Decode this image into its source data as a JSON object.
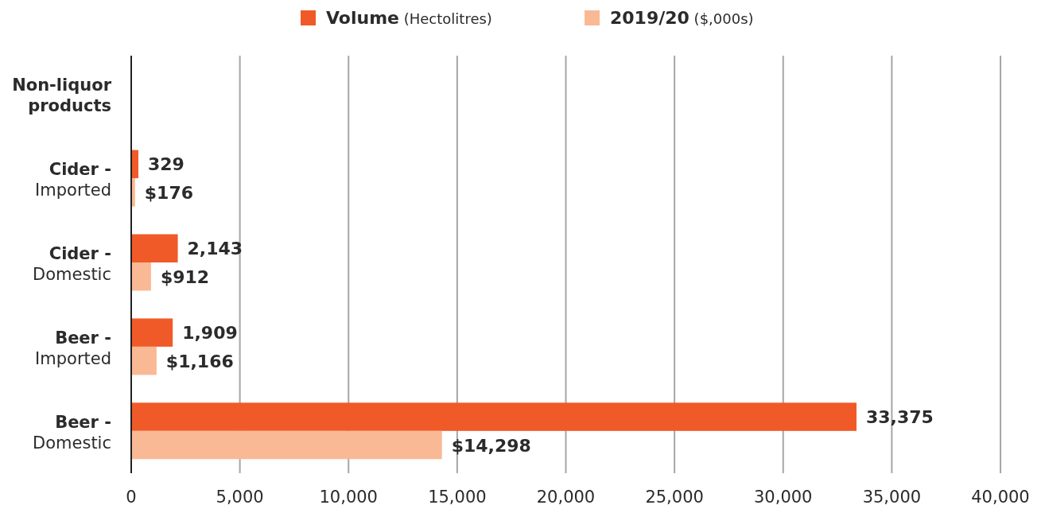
{
  "chart_data": {
    "type": "bar",
    "orientation": "horizontal",
    "categories": [
      "Non-liquor products",
      "Cider - Imported",
      "Cider - Domestic",
      "Beer - Imported",
      "Beer - Domestic"
    ],
    "series": [
      {
        "name": "Volume (Hectolitres)",
        "color": "#f05a28",
        "values": [
          null,
          329,
          2143,
          1909,
          33375
        ],
        "value_labels": [
          null,
          "329",
          "2,143",
          "1,909",
          "33,375"
        ]
      },
      {
        "name": "2019/20 ($,000s)",
        "color": "#f9b995",
        "values": [
          null,
          176,
          912,
          1166,
          14298
        ],
        "value_labels": [
          null,
          "$176",
          "$912",
          "$1,166",
          "$14,298"
        ]
      }
    ],
    "xlim": [
      0,
      40000
    ],
    "xticks": [
      {
        "value": 0,
        "label": "0"
      },
      {
        "value": 5000,
        "label": "5,000"
      },
      {
        "value": 10000,
        "label": "10,000"
      },
      {
        "value": 15000,
        "label": "15,000"
      },
      {
        "value": 20000,
        "label": "20,000"
      },
      {
        "value": 25000,
        "label": "25,000"
      },
      {
        "value": 30000,
        "label": "30,000"
      },
      {
        "value": 35000,
        "label": "35,000"
      },
      {
        "value": 40000,
        "label": "40,000"
      }
    ],
    "grid": "x",
    "legend": "top"
  }
}
